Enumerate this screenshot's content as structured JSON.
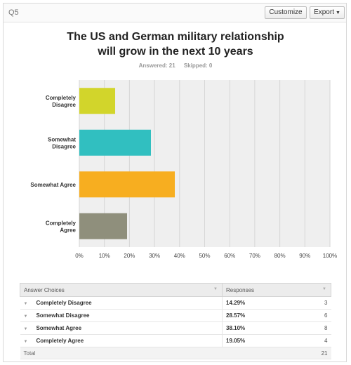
{
  "question": {
    "number": "Q5"
  },
  "toolbar": {
    "customize_label": "Customize",
    "export_label": "Export"
  },
  "title_line1": "The US and German military relationship",
  "title_line2": "will grow in the next 10 years",
  "stats": {
    "answered_label": "Answered: 21",
    "skipped_label": "Skipped: 0"
  },
  "chart_data": {
    "type": "bar",
    "orientation": "horizontal",
    "categories": [
      [
        "Completely",
        "Disagree"
      ],
      [
        "Somewhat",
        "Disagree"
      ],
      [
        "Somewhat Agree"
      ],
      [
        "Completely",
        "Agree"
      ]
    ],
    "values": [
      14.29,
      28.57,
      38.1,
      19.05
    ],
    "colors": [
      "#d2d52b",
      "#31bfc0",
      "#f7ae20",
      "#8f8f7c"
    ],
    "xlim": [
      0,
      100
    ],
    "x_ticks": [
      "0%",
      "10%",
      "20%",
      "30%",
      "40%",
      "50%",
      "60%",
      "70%",
      "80%",
      "90%",
      "100%"
    ],
    "grid": true,
    "title": "The US and German military relationship will grow in the next 10 years"
  },
  "table": {
    "headers": {
      "choices": "Answer Choices",
      "responses": "Responses"
    },
    "rows": [
      {
        "choice": "Completely Disagree",
        "percent": "14.29%",
        "count": "3"
      },
      {
        "choice": "Somewhat Disagree",
        "percent": "28.57%",
        "count": "6"
      },
      {
        "choice": "Somewhat Agree",
        "percent": "38.10%",
        "count": "8"
      },
      {
        "choice": "Completely Agree",
        "percent": "19.05%",
        "count": "4"
      }
    ],
    "total_label": "Total",
    "total_value": "21"
  }
}
